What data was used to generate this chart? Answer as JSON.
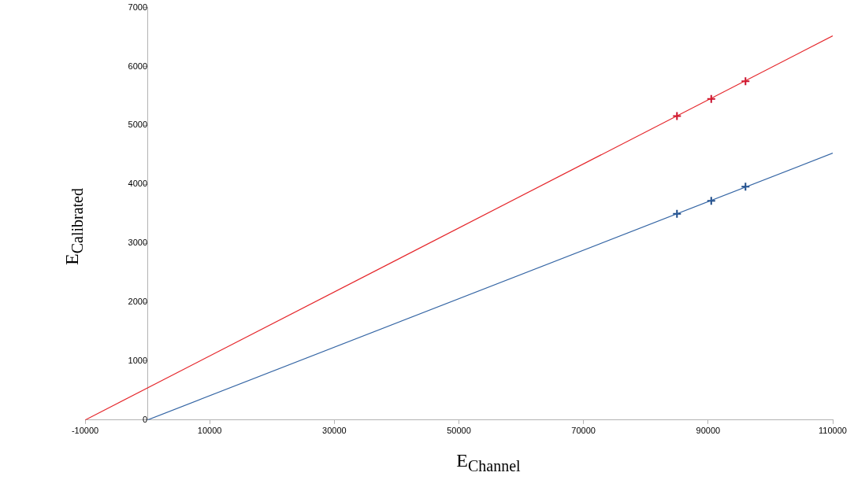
{
  "chart_data": {
    "type": "scatter",
    "xlabel": "E$_{Channel}$",
    "ylabel": "E$_{Calibrated}$",
    "xlim": [
      -10000,
      110000
    ],
    "xticks": [
      -10000,
      10000,
      30000,
      50000,
      70000,
      90000,
      110000
    ],
    "ylim": [
      0,
      7000
    ],
    "yticks": [
      0,
      1000,
      2000,
      3000,
      4000,
      5000,
      6000,
      7000
    ],
    "grid": false,
    "legend": false,
    "series": [
      {
        "type": "line",
        "color": "#e5262b",
        "x": [
          -10000,
          110000
        ],
        "values": [
          0,
          6520
        ],
        "marker": "none",
        "line_style": "solid"
      },
      {
        "type": "line",
        "color": "#3465a4",
        "x": [
          0,
          110000
        ],
        "values": [
          0,
          4530
        ],
        "marker": "none",
        "line_style": "solid"
      },
      {
        "type": "scatter",
        "color": "#c8102e",
        "x": [
          85000,
          90500,
          96000
        ],
        "values": [
          5160,
          5450,
          5750
        ],
        "marker": "cross"
      },
      {
        "type": "scatter",
        "color": "#1c4a87",
        "x": [
          85000,
          90500,
          96000
        ],
        "values": [
          3500,
          3720,
          3960
        ],
        "marker": "cross"
      }
    ]
  }
}
